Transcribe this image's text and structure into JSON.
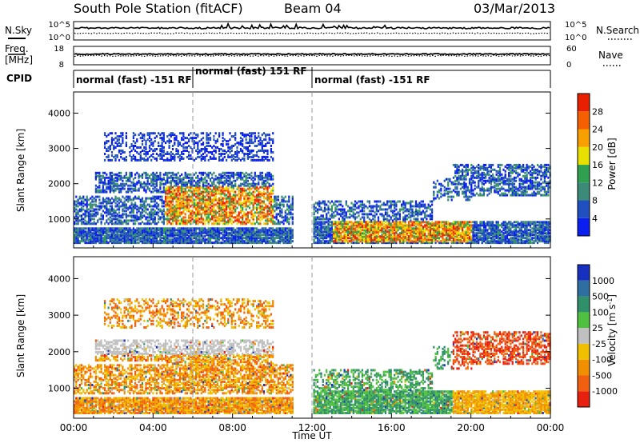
{
  "header": {
    "station": "South Pole Station (fitACF)",
    "beam": "Beam 04",
    "date": "03/Mar/2013"
  },
  "status_panels": {
    "nsky_label": "N.Sky",
    "nsearch_label": "N.Search",
    "freq_label_1": "Freq.",
    "freq_label_2": "[MHz]",
    "nave_label": "Nave",
    "cpid_label": "CPID",
    "nsky_ticks": [
      "10^5",
      "10^0"
    ],
    "nsearch_ticks": [
      "10^5",
      "10^0"
    ],
    "freq_ticks": [
      "18",
      "8"
    ],
    "nave_ticks": [
      "60",
      "0"
    ],
    "modes": [
      {
        "label": "normal (fast) -151 RF",
        "start_hour": 0
      },
      {
        "label": "normal (fast) 151 RF",
        "start_hour": 6
      },
      {
        "label": "normal (fast) -151 RF",
        "start_hour": 12
      }
    ]
  },
  "chart_data": [
    {
      "type": "heatmap",
      "name": "power",
      "ylabel": "Slant Range [km]",
      "y_ticks": [
        "1000",
        "2000",
        "3000",
        "4000"
      ],
      "ylim": [
        180,
        4600
      ],
      "xlim": [
        0,
        24
      ],
      "colorbar_label": "Power [dB]",
      "colorbar_ticks": [
        "4",
        "8",
        "12",
        "16",
        "20",
        "24",
        "28"
      ],
      "colors": [
        "#0a1ef0",
        "#2050c0",
        "#3c8a78",
        "#2ea050",
        "#e8e000",
        "#f8a000",
        "#f46000",
        "#e82000"
      ]
    },
    {
      "type": "heatmap",
      "name": "velocity",
      "ylabel": "Slant Range [km]",
      "xlabel": "Time UT",
      "y_ticks": [
        "1000",
        "2000",
        "3000",
        "4000"
      ],
      "x_ticks": [
        "00:00",
        "04:00",
        "08:00",
        "12:00",
        "16:00",
        "20:00",
        "00:00"
      ],
      "ylim": [
        180,
        4600
      ],
      "xlim": [
        0,
        24
      ],
      "colorbar_label": "Velocity [m s",
      "colorbar_label_sup": "-1",
      "colorbar_label_end": "]",
      "colorbar_ticks": [
        "1000",
        "500",
        "100",
        "25",
        "-25",
        "-100",
        "-500",
        "-1000"
      ],
      "colors": [
        "#1830c0",
        "#2e6ea0",
        "#30906a",
        "#50c040",
        "#c0c0c0",
        "#f0c000",
        "#f09000",
        "#f06010",
        "#e82010"
      ]
    }
  ]
}
